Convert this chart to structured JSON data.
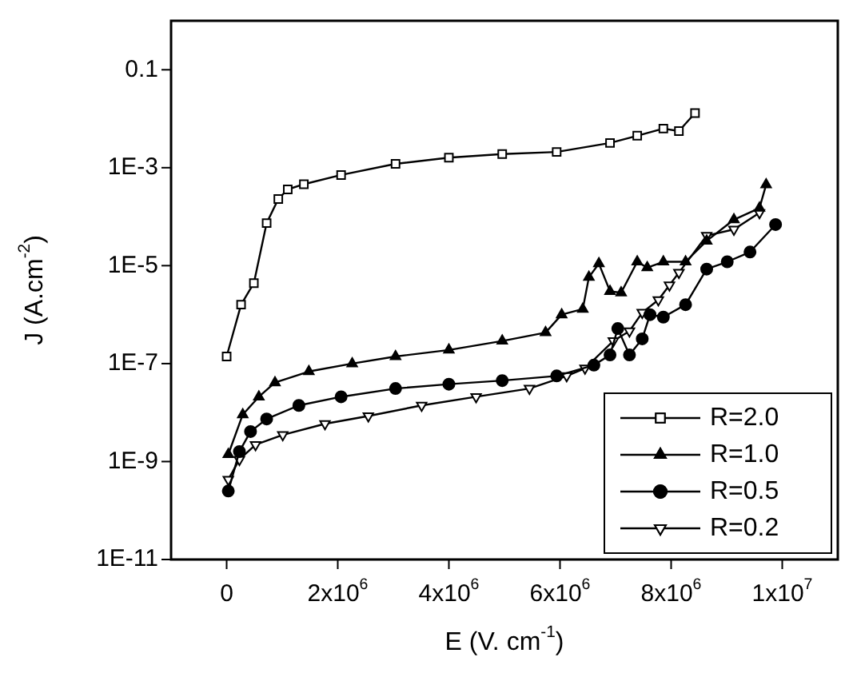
{
  "chart_data": {
    "type": "line",
    "xlabel": "E (V. cm$^{-1}$)",
    "ylabel": "J (A.cm$^{-2}$)",
    "log": "y",
    "grid": false,
    "legend": "bottom right",
    "line_style": "solid",
    "xlim": [
      -1000000,
      11000000
    ],
    "xticks": [
      0,
      {
        "value": 2000000,
        "label": "2x10$^{6}$"
      },
      {
        "value": 4000000,
        "label": "4x10$^{6}$"
      },
      {
        "value": 6000000,
        "label": "6x10$^{6}$"
      },
      {
        "value": 8000000,
        "label": "8x10$^{6}$"
      },
      {
        "value": 10000000,
        "label": "1x10$^{7}$"
      }
    ],
    "ylim": [
      1e-11,
      1
    ],
    "yticks": [
      {
        "value": 1e-11,
        "label": "1E-11"
      },
      {
        "value": 1e-09,
        "label": "1E-9"
      },
      {
        "value": 1e-07,
        "label": "1E-7"
      },
      {
        "value": 1e-05,
        "label": "1E-5"
      },
      {
        "value": 0.001,
        "label": "1E-3"
      },
      0.1
    ],
    "series": [
      {
        "name": "R=2.0",
        "color": "#000000",
        "marker": "square",
        "x": [
          0,
          260000,
          490000,
          720000,
          930000,
          1100000,
          1390000,
          2060000,
          3040000,
          4000000,
          4960000,
          5940000,
          6900000,
          7390000,
          7860000,
          8140000,
          8430000
        ],
        "values": [
          1.4e-07,
          1.6e-06,
          4.4e-06,
          7.4e-05,
          0.00023,
          0.00036,
          0.00046,
          0.00071,
          0.0012,
          0.0016,
          0.0019,
          0.0021,
          0.0032,
          0.0045,
          0.0063,
          0.0056,
          0.013
        ]
      },
      {
        "name": "R=1.0",
        "color": "#000000",
        "marker": "triangle",
        "x": [
          30000,
          290000,
          580000,
          870000,
          1480000,
          2260000,
          3040000,
          4000000,
          4960000,
          5740000,
          6030000,
          6410000,
          6520000,
          6700000,
          6900000,
          7100000,
          7390000,
          7570000,
          7860000,
          8260000,
          8640000,
          9130000,
          9590000,
          9710000
        ],
        "values": [
          1.4e-09,
          9.1e-09,
          2.1e-08,
          4.1e-08,
          6.9e-08,
          1e-07,
          1.4e-07,
          1.9e-07,
          2.9e-07,
          4.3e-07,
          1e-06,
          1.3e-06,
          5.8e-06,
          1.1e-05,
          3e-06,
          2.8e-06,
          1.2e-05,
          9.1e-06,
          1.2e-05,
          1.2e-05,
          3.2e-05,
          8.7e-05,
          0.00015,
          0.00045
        ]
      },
      {
        "name": "R=0.5",
        "color": "#000000",
        "marker": "circle",
        "x": [
          30000,
          230000,
          430000,
          720000,
          1300000,
          2060000,
          3040000,
          4000000,
          4960000,
          5940000,
          6610000,
          6900000,
          7040000,
          7250000,
          7480000,
          7620000,
          7860000,
          8260000,
          8640000,
          9010000,
          9420000,
          9880000
        ],
        "values": [
          2.5e-10,
          1.6e-09,
          4.1e-09,
          7.4e-09,
          1.4e-08,
          2.1e-08,
          3.1e-08,
          3.8e-08,
          4.5e-08,
          5.6e-08,
          9.3e-08,
          1.5e-07,
          5.2e-07,
          1.5e-07,
          3.2e-07,
          1e-06,
          8.9e-07,
          1.6e-06,
          8.5e-06,
          1.2e-05,
          1.9e-05,
          6.9e-05
        ]
      },
      {
        "name": "R=0.2",
        "color": "#000000",
        "marker": "triangle-down",
        "x": [
          30000,
          230000,
          520000,
          1010000,
          1770000,
          2550000,
          3510000,
          4490000,
          5450000,
          6120000,
          6450000,
          6960000,
          7250000,
          7480000,
          7770000,
          7970000,
          8140000,
          8640000,
          9130000,
          9590000
        ],
        "values": [
          4.3e-10,
          1.1e-09,
          2.2e-09,
          3.5e-09,
          5.9e-09,
          8.5e-09,
          1.4e-08,
          2.1e-08,
          3.1e-08,
          5.6e-08,
          8e-08,
          2.9e-07,
          4.6e-07,
          1.1e-06,
          2e-06,
          4e-06,
          7.2e-06,
          4.1e-05,
          5.5e-05,
          0.00012
        ]
      }
    ]
  }
}
